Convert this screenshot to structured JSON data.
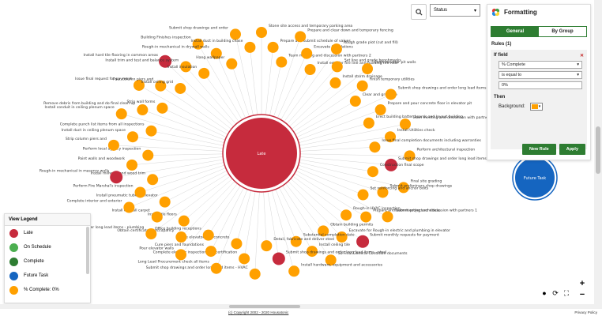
{
  "center": {
    "label": "Late",
    "color": "#c62b3d"
  },
  "future": {
    "label": "Future Task",
    "color": "#1565c0"
  },
  "colors": {
    "late": "#c62b3d",
    "on_schedule": "#4caf50",
    "complete": "#2e7d32",
    "future": "#1565c0",
    "pct": "#ffa000"
  },
  "search": {
    "icon": "search-icon"
  },
  "status_select": {
    "value": "Status"
  },
  "panel": {
    "title": "Formatting",
    "tabs": [
      "General",
      "By Group"
    ],
    "rules_label": "Rules",
    "rules_count": "(1)",
    "if_field": "If field",
    "field_value": "% Complete",
    "operator_value": "is equal to",
    "value": "0%",
    "then_label": "Then",
    "background_label": "Background:",
    "background_color": "#ffa000",
    "new_rule": "New Rule",
    "apply": "Apply"
  },
  "legend": {
    "title": "View Legend",
    "items": [
      {
        "label": "Late",
        "color": "#c62b3d"
      },
      {
        "label": "On Schedule",
        "color": "#4caf50"
      },
      {
        "label": "Complete",
        "color": "#2e7d32"
      },
      {
        "label": "Future Task",
        "color": "#1565c0"
      },
      {
        "label": "% Complete: 0%",
        "color": "#ffa000"
      }
    ]
  },
  "footer": {
    "copyright": "(c) Copyright 2002 - 2020 Housatonic",
    "privacy": "Privacy Policy"
  },
  "nodes": [
    {
      "label": "Stone site access and temporary parking area",
      "type": "pct"
    },
    {
      "label": "Prepare and submit schedule of values",
      "type": "pct"
    },
    {
      "label": "Team meeting and discussion with partners 2",
      "type": "pct"
    },
    {
      "label": "Prepare and clear down and temporary fencing",
      "type": "pct"
    },
    {
      "label": "Excavate foundations",
      "type": "pct"
    },
    {
      "label": "Install exterior fire line and building fire riser",
      "type": "pct"
    },
    {
      "label": "Rough grade plot (cut and fill)",
      "type": "pct"
    },
    {
      "label": "Set line and grade benchmarks",
      "type": "pct"
    },
    {
      "label": "Install storm drainage",
      "type": "pct"
    },
    {
      "label": "Form elevator pit walls",
      "type": "pct"
    },
    {
      "label": "Finish temporary utilities",
      "type": "pct"
    },
    {
      "label": "Clear and grub site",
      "type": "pct"
    },
    {
      "label": "Submit shop drawings and order long lead items - elevator",
      "type": "pct"
    },
    {
      "label": "Prepare and pour concrete floor in elevator pit",
      "type": "pct"
    },
    {
      "label": "Erect building batter boards and layout building",
      "type": "pct"
    },
    {
      "label": "Team meeting and discussion with partners",
      "type": "pct"
    },
    {
      "label": "Install Utilities check",
      "type": "pct"
    },
    {
      "label": "Issue final completion documents including warranties",
      "type": "pct"
    },
    {
      "label": "Perform architectural inspection",
      "type": "pct"
    },
    {
      "label": "Submit shop drawings and order long lead items - roofing",
      "type": "late"
    },
    {
      "label": "Construction final scope",
      "type": "pct"
    },
    {
      "label": "Final site grading",
      "type": "pct"
    },
    {
      "label": "Submit preliminary shop drawings",
      "type": "pct"
    },
    {
      "label": "Set reinforcing and anchor bolts",
      "type": "pct"
    },
    {
      "label": "Team meeting and discussion with partners 1",
      "type": "pct"
    },
    {
      "label": "Prepare and submit project schedule",
      "type": "pct"
    },
    {
      "label": "Rough-in HVAC inspection",
      "type": "pct"
    },
    {
      "label": "Submit monthly requests for payment",
      "type": "late"
    },
    {
      "label": "Excavate for Rough-in electric and plumbing in elevator",
      "type": "pct"
    },
    {
      "label": "Obtain building permits",
      "type": "pct"
    },
    {
      "label": "Su Final General Condition documents",
      "type": "pct"
    },
    {
      "label": "Install ceiling tile",
      "type": "pct"
    },
    {
      "label": "Substantial completion date",
      "type": "pct"
    },
    {
      "label": "Install hardware, equipment and accessories",
      "type": "pct"
    },
    {
      "label": "Submit shop drawings and order long lead items - steel",
      "type": "late"
    },
    {
      "label": "Detail, fabricate and deliver steel",
      "type": "pct"
    },
    {
      "label": "Submit shop drawings and order long lead items - HVAC",
      "type": "pct"
    },
    {
      "label": "Complete elevator inspection and certification",
      "type": "pct"
    },
    {
      "label": "Cure elevator wall concrete",
      "type": "pct"
    },
    {
      "label": "Long Lead Procurement check all items",
      "type": "pct"
    },
    {
      "label": "Cure piers and foundations",
      "type": "pct"
    },
    {
      "label": "Office building receptions",
      "type": "pct"
    },
    {
      "label": "Pour elevator walls",
      "type": "pct"
    },
    {
      "label": "Obtain certificate of occupancy",
      "type": "pct"
    },
    {
      "label": "Install tile floors",
      "type": "pct"
    },
    {
      "label": "Submit shop drawings and order long lead items - plumbing",
      "type": "pct"
    },
    {
      "label": "Install drywall carpet",
      "type": "pct"
    },
    {
      "label": "Install pneumatic tube in elevator",
      "type": "pct"
    },
    {
      "label": "Complete interior and exterior",
      "type": "pct"
    },
    {
      "label": "Perform Fire Marshal's inspection",
      "type": "pct"
    },
    {
      "label": "Install millwork and wood trim",
      "type": "pct"
    },
    {
      "label": "Rough-in mechanical in masonry walls",
      "type": "late"
    },
    {
      "label": "Paint walls and woodwork",
      "type": "pct"
    },
    {
      "label": "Perform local agency inspection",
      "type": "pct"
    },
    {
      "label": "Strip column piers and",
      "type": "pct"
    },
    {
      "label": "Install duct in ceiling plenum space",
      "type": "pct"
    },
    {
      "label": "Complete punch list items from all inspections",
      "type": "pct"
    },
    {
      "label": "Install conduit in ceiling plenum space",
      "type": "pct"
    },
    {
      "label": "Remove debris from building and do final clean-up",
      "type": "pct"
    },
    {
      "label": "Strip wall forms",
      "type": "pct"
    },
    {
      "label": "Issue final request for payment",
      "type": "pct"
    },
    {
      "label": "Pour column piers and",
      "type": "pct"
    },
    {
      "label": "Install ceiling grid",
      "type": "pct"
    },
    {
      "label": "Install hard tile flooring in common areas",
      "type": "late"
    },
    {
      "label": "Install trim and test and balance system",
      "type": "pct"
    },
    {
      "label": "Install insulation",
      "type": "pct"
    },
    {
      "label": "Building Finishes inspection",
      "type": "pct"
    },
    {
      "label": "Rough-in mechanical in drywall walls",
      "type": "pct"
    },
    {
      "label": "Hang wallpaper",
      "type": "pct"
    },
    {
      "label": "Submit shop drawings and order",
      "type": "pct"
    },
    {
      "label": "Install duct in building chase",
      "type": "pct"
    }
  ]
}
